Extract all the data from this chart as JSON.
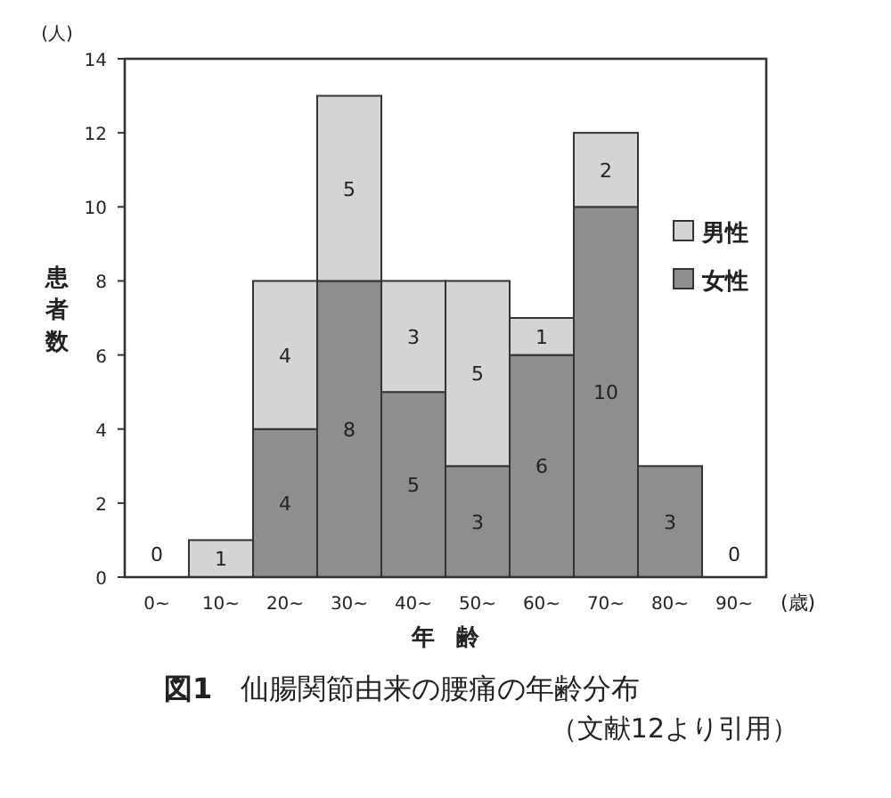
{
  "chart_data": {
    "type": "bar",
    "stacked": true,
    "title": "図1　仙腸関節由来の腰痛の年齢分布",
    "xlabel": "年齢",
    "ylabel": "患者数",
    "annotations": [
      "(人)",
      "(歳)",
      "（文献12より引用）"
    ],
    "categories": [
      "0~",
      "10~",
      "20~",
      "30~",
      "40~",
      "50~",
      "60~",
      "70~",
      "80~",
      "90~"
    ],
    "series": [
      {
        "name": "女性",
        "color": "#8e8e8e",
        "values": [
          0,
          0,
          4,
          8,
          5,
          3,
          6,
          10,
          3,
          0
        ],
        "value_labels": [
          "0",
          null,
          "4",
          "8",
          "5",
          "3",
          "6",
          "10",
          "3",
          "0"
        ]
      },
      {
        "name": "男性",
        "color": "#d4d4d4",
        "values": [
          0,
          1,
          4,
          5,
          3,
          5,
          1,
          2,
          0,
          0
        ],
        "value_labels": [
          null,
          "1",
          "4",
          "5",
          "3",
          "5",
          "1",
          "2",
          null,
          null
        ]
      }
    ],
    "ylim": [
      0,
      14
    ],
    "yticks": [
      0,
      2,
      4,
      6,
      8,
      10,
      12,
      14
    ],
    "legend": "right"
  }
}
